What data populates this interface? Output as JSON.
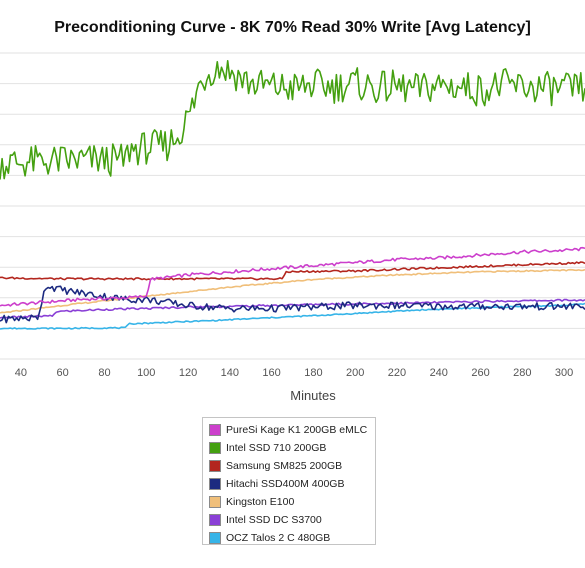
{
  "chart_data": {
    "type": "line",
    "title": "Preconditioning Curve - 8K 70% Read 30% Write [Avg Latency]",
    "xlabel": "Minutes",
    "ylabel": "",
    "xlim": [
      30,
      310
    ],
    "ylim": [
      0,
      10
    ],
    "xticks": [
      40,
      60,
      80,
      100,
      120,
      140,
      160,
      180,
      200,
      220,
      240,
      260,
      280,
      300
    ],
    "grid": true,
    "legend_position": "bottom-center",
    "series": [
      {
        "name": "PureSi Kage K1 200GB eMLC",
        "color": "#cc3fcc",
        "x": [
          30,
          50,
          70,
          90,
          100,
          102,
          120,
          140,
          160,
          180,
          200,
          220,
          240,
          260,
          280,
          300,
          310
        ],
        "y": [
          1.75,
          1.85,
          1.95,
          2.0,
          2.05,
          2.6,
          2.75,
          2.85,
          2.95,
          3.05,
          3.15,
          3.25,
          3.3,
          3.4,
          3.5,
          3.55,
          3.6
        ]
      },
      {
        "name": "Intel SSD 710 200GB",
        "color": "#44a010",
        "x": [
          30,
          50,
          70,
          90,
          92,
          100,
          110,
          115,
          120,
          123,
          125,
          130,
          135,
          140,
          150,
          160,
          170,
          180,
          190,
          200,
          210,
          220,
          230,
          240,
          250,
          260,
          270,
          280,
          290,
          300,
          310
        ],
        "y": [
          6.4,
          6.45,
          6.5,
          6.5,
          6.85,
          6.9,
          7.0,
          7.3,
          7.9,
          8.4,
          8.9,
          9.4,
          9.55,
          9.4,
          9.0,
          8.9,
          8.85,
          8.95,
          8.9,
          9.0,
          8.85,
          8.9,
          8.8,
          8.95,
          8.9,
          8.8,
          8.95,
          8.9,
          8.85,
          8.8,
          8.85
        ]
      },
      {
        "name": "Samsung SM825 200GB",
        "color": "#b3261e",
        "x": [
          30,
          60,
          100,
          140,
          165,
          167,
          200,
          240,
          280,
          310
        ],
        "y": [
          2.65,
          2.62,
          2.62,
          2.62,
          2.62,
          2.85,
          2.88,
          2.98,
          3.08,
          3.15
        ]
      },
      {
        "name": "Hitachi SSD400M 400GB",
        "color": "#1c2a80",
        "x": [
          30,
          48,
          50,
          52,
          55,
          60,
          70,
          80,
          90,
          100,
          110,
          120,
          140,
          160,
          180,
          200,
          220,
          240,
          260,
          280,
          300,
          310
        ],
        "y": [
          1.3,
          1.35,
          1.9,
          2.4,
          2.35,
          2.25,
          2.15,
          2.05,
          1.95,
          1.95,
          1.85,
          1.75,
          1.65,
          1.65,
          1.7,
          1.75,
          1.75,
          1.72,
          1.72,
          1.72,
          1.72,
          1.72
        ]
      },
      {
        "name": "Kingston E100",
        "color": "#f0bf7a",
        "x": [
          30,
          60,
          100,
          140,
          180,
          220,
          260,
          300,
          310
        ],
        "y": [
          1.5,
          1.75,
          2.05,
          2.35,
          2.6,
          2.75,
          2.85,
          2.9,
          2.9
        ]
      },
      {
        "name": "Intel SSD DC S3700",
        "color": "#8a3fd6",
        "x": [
          30,
          50,
          55,
          57,
          80,
          100,
          120,
          140,
          160,
          180,
          200,
          220,
          240,
          260,
          280,
          300,
          310
        ],
        "y": [
          1.35,
          1.4,
          1.4,
          1.55,
          1.62,
          1.65,
          1.7,
          1.72,
          1.75,
          1.78,
          1.8,
          1.82,
          1.85,
          1.88,
          1.9,
          1.92,
          1.92
        ]
      },
      {
        "name": "OCZ Talos 2 C 480GB",
        "color": "#36b4e8",
        "x": [
          30,
          60,
          90,
          92,
          130,
          160,
          190,
          230,
          270,
          300,
          310
        ],
        "y": [
          1.0,
          1.0,
          1.02,
          1.15,
          1.25,
          1.35,
          1.45,
          1.6,
          1.7,
          1.75,
          1.8
        ]
      }
    ]
  }
}
